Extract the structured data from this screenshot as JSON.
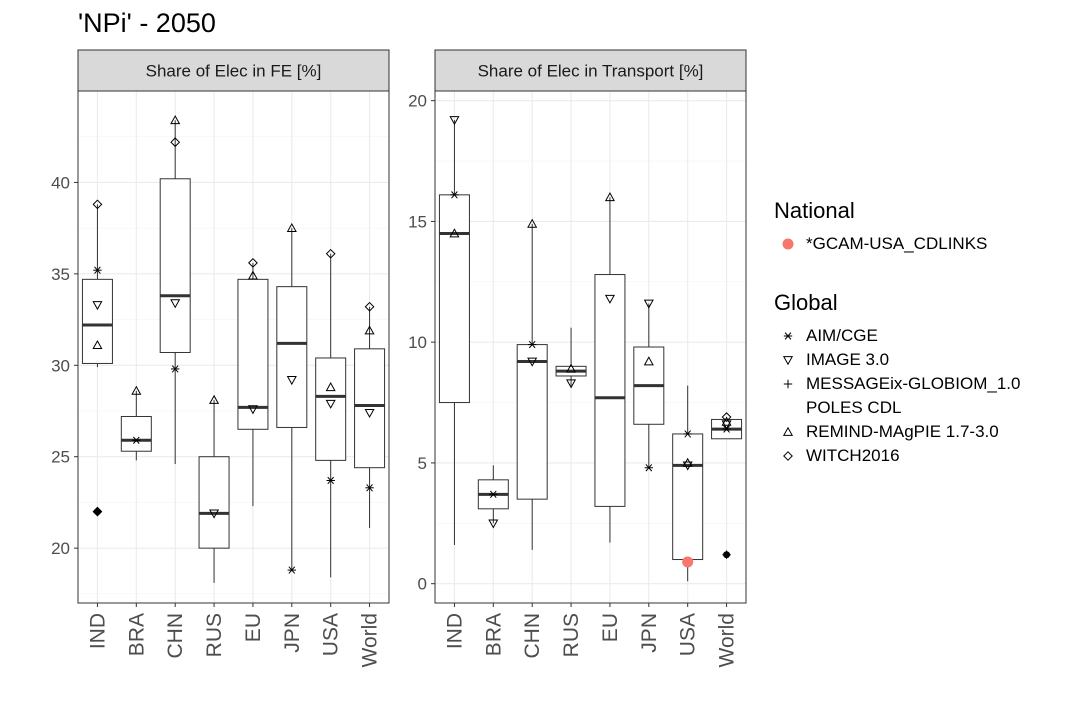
{
  "title": "'NPi' - 2050",
  "legend": {
    "national_title": "National",
    "national_items": [
      {
        "label": "*GCAM-USA_CDLINKS",
        "symbol": "dot-red",
        "color": "#F8766D"
      }
    ],
    "global_title": "Global",
    "global_items": [
      {
        "label": "AIM/CGE",
        "symbol": "asterisk"
      },
      {
        "label": "IMAGE 3.0",
        "symbol": "triangle-down"
      },
      {
        "label": "MESSAGEix-GLOBIOM_1.0",
        "symbol": "plus"
      },
      {
        "label": "POLES CDL",
        "symbol": "none"
      },
      {
        "label": "REMIND-MAgPIE 1.7-3.0",
        "symbol": "triangle-up"
      },
      {
        "label": "WITCH2016",
        "symbol": "diamond"
      }
    ]
  },
  "chart_data": [
    {
      "type": "box",
      "facet_title": "Share of Elec in FE [%]",
      "categories": [
        "IND",
        "BRA",
        "CHN",
        "RUS",
        "EU",
        "JPN",
        "USA",
        "World"
      ],
      "ylim": [
        17,
        45
      ],
      "yticks": [
        20,
        25,
        30,
        35,
        40
      ],
      "grid": true,
      "boxes": [
        {
          "cat": "IND",
          "q1": 30.1,
          "median": 32.2,
          "q3": 34.7,
          "whisker_low": 29.9,
          "whisker_high": 38.8,
          "outliers": [
            22.0
          ]
        },
        {
          "cat": "BRA",
          "q1": 25.3,
          "median": 25.9,
          "q3": 27.2,
          "whisker_low": 24.8,
          "whisker_high": 28.6,
          "outliers": []
        },
        {
          "cat": "CHN",
          "q1": 30.7,
          "median": 33.8,
          "q3": 40.2,
          "whisker_low": 24.6,
          "whisker_high": 43.4,
          "outliers": []
        },
        {
          "cat": "RUS",
          "q1": 20.0,
          "median": 21.9,
          "q3": 25.0,
          "whisker_low": 18.1,
          "whisker_high": 28.1,
          "outliers": []
        },
        {
          "cat": "EU",
          "q1": 26.5,
          "median": 27.7,
          "q3": 34.7,
          "whisker_low": 22.3,
          "whisker_high": 35.6,
          "outliers": []
        },
        {
          "cat": "JPN",
          "q1": 26.6,
          "median": 31.2,
          "q3": 34.3,
          "whisker_low": 18.8,
          "whisker_high": 37.5,
          "outliers": []
        },
        {
          "cat": "USA",
          "q1": 24.8,
          "median": 28.3,
          "q3": 30.4,
          "whisker_low": 18.4,
          "whisker_high": 36.1,
          "outliers": []
        },
        {
          "cat": "World",
          "q1": 24.4,
          "median": 27.8,
          "q3": 30.9,
          "whisker_low": 21.1,
          "whisker_high": 33.2,
          "outliers": []
        }
      ],
      "points": [
        {
          "cat": "IND",
          "model": "AIM/CGE",
          "y": 35.2
        },
        {
          "cat": "IND",
          "model": "IMAGE 3.0",
          "y": 33.3
        },
        {
          "cat": "IND",
          "model": "REMIND-MAgPIE 1.7-3.0",
          "y": 31.1
        },
        {
          "cat": "IND",
          "model": "WITCH2016",
          "y": 38.8
        },
        {
          "cat": "IND",
          "model": "MESSAGEix-GLOBIOM_1.0",
          "y": 22.0
        },
        {
          "cat": "IND",
          "model": "WITCH2016",
          "y": 22.0
        },
        {
          "cat": "BRA",
          "model": "AIM/CGE",
          "y": 25.9
        },
        {
          "cat": "BRA",
          "model": "REMIND-MAgPIE 1.7-3.0",
          "y": 28.6
        },
        {
          "cat": "CHN",
          "model": "AIM/CGE",
          "y": 29.8
        },
        {
          "cat": "CHN",
          "model": "IMAGE 3.0",
          "y": 33.4
        },
        {
          "cat": "CHN",
          "model": "WITCH2016",
          "y": 42.2
        },
        {
          "cat": "CHN",
          "model": "REMIND-MAgPIE 1.7-3.0",
          "y": 43.4
        },
        {
          "cat": "RUS",
          "model": "IMAGE 3.0",
          "y": 21.9
        },
        {
          "cat": "RUS",
          "model": "REMIND-MAgPIE 1.7-3.0",
          "y": 28.1
        },
        {
          "cat": "EU",
          "model": "IMAGE 3.0",
          "y": 27.6
        },
        {
          "cat": "EU",
          "model": "REMIND-MAgPIE 1.7-3.0",
          "y": 34.9
        },
        {
          "cat": "EU",
          "model": "WITCH2016",
          "y": 35.6
        },
        {
          "cat": "JPN",
          "model": "AIM/CGE",
          "y": 18.8
        },
        {
          "cat": "JPN",
          "model": "IMAGE 3.0",
          "y": 29.2
        },
        {
          "cat": "JPN",
          "model": "REMIND-MAgPIE 1.7-3.0",
          "y": 37.5
        },
        {
          "cat": "USA",
          "model": "AIM/CGE",
          "y": 23.7
        },
        {
          "cat": "USA",
          "model": "IMAGE 3.0",
          "y": 27.9
        },
        {
          "cat": "USA",
          "model": "REMIND-MAgPIE 1.7-3.0",
          "y": 28.8
        },
        {
          "cat": "USA",
          "model": "WITCH2016",
          "y": 36.1
        },
        {
          "cat": "World",
          "model": "AIM/CGE",
          "y": 23.3
        },
        {
          "cat": "World",
          "model": "IMAGE 3.0",
          "y": 27.4
        },
        {
          "cat": "World",
          "model": "REMIND-MAgPIE 1.7-3.0",
          "y": 31.9
        },
        {
          "cat": "World",
          "model": "WITCH2016",
          "y": 33.2
        }
      ]
    },
    {
      "type": "box",
      "facet_title": "Share of Elec in Transport [%]",
      "categories": [
        "IND",
        "BRA",
        "CHN",
        "RUS",
        "EU",
        "JPN",
        "USA",
        "World"
      ],
      "ylim": [
        -0.8,
        20.4
      ],
      "yticks": [
        0,
        5,
        10,
        15,
        20
      ],
      "grid": true,
      "boxes": [
        {
          "cat": "IND",
          "q1": 7.5,
          "median": 14.5,
          "q3": 16.1,
          "whisker_low": 1.6,
          "whisker_high": 19.2,
          "outliers": []
        },
        {
          "cat": "BRA",
          "q1": 3.1,
          "median": 3.7,
          "q3": 4.3,
          "whisker_low": 2.5,
          "whisker_high": 4.9,
          "outliers": []
        },
        {
          "cat": "CHN",
          "q1": 3.5,
          "median": 9.2,
          "q3": 9.9,
          "whisker_low": 1.4,
          "whisker_high": 14.9,
          "outliers": []
        },
        {
          "cat": "RUS",
          "q1": 8.6,
          "median": 8.8,
          "q3": 9.0,
          "whisker_low": 8.2,
          "whisker_high": 10.6,
          "outliers": []
        },
        {
          "cat": "EU",
          "q1": 3.2,
          "median": 7.7,
          "q3": 12.8,
          "whisker_low": 1.7,
          "whisker_high": 16.0,
          "outliers": []
        },
        {
          "cat": "JPN",
          "q1": 6.6,
          "median": 8.2,
          "q3": 9.8,
          "whisker_low": 4.8,
          "whisker_high": 11.6,
          "outliers": []
        },
        {
          "cat": "USA",
          "q1": 1.0,
          "median": 4.9,
          "q3": 6.2,
          "whisker_low": 0.1,
          "whisker_high": 8.2,
          "outliers": []
        },
        {
          "cat": "World",
          "q1": 6.0,
          "median": 6.4,
          "q3": 6.8,
          "whisker_low": 6.0,
          "whisker_high": 6.9,
          "outliers": [
            1.2
          ]
        }
      ],
      "points": [
        {
          "cat": "IND",
          "model": "AIM/CGE",
          "y": 16.1
        },
        {
          "cat": "IND",
          "model": "REMIND-MAgPIE 1.7-3.0",
          "y": 14.5
        },
        {
          "cat": "IND",
          "model": "IMAGE 3.0",
          "y": 19.2
        },
        {
          "cat": "BRA",
          "model": "AIM/CGE",
          "y": 3.7
        },
        {
          "cat": "BRA",
          "model": "IMAGE 3.0",
          "y": 2.5
        },
        {
          "cat": "CHN",
          "model": "AIM/CGE",
          "y": 9.9
        },
        {
          "cat": "CHN",
          "model": "IMAGE 3.0",
          "y": 9.2
        },
        {
          "cat": "CHN",
          "model": "REMIND-MAgPIE 1.7-3.0",
          "y": 14.9
        },
        {
          "cat": "RUS",
          "model": "IMAGE 3.0",
          "y": 8.3
        },
        {
          "cat": "RUS",
          "model": "REMIND-MAgPIE 1.7-3.0",
          "y": 8.9
        },
        {
          "cat": "EU",
          "model": "IMAGE 3.0",
          "y": 11.8
        },
        {
          "cat": "EU",
          "model": "REMIND-MAgPIE 1.7-3.0",
          "y": 16.0
        },
        {
          "cat": "JPN",
          "model": "AIM/CGE",
          "y": 4.8
        },
        {
          "cat": "JPN",
          "model": "REMIND-MAgPIE 1.7-3.0",
          "y": 9.2
        },
        {
          "cat": "JPN",
          "model": "IMAGE 3.0",
          "y": 11.6
        },
        {
          "cat": "USA",
          "model": "AIM/CGE",
          "y": 6.2
        },
        {
          "cat": "USA",
          "model": "IMAGE 3.0",
          "y": 4.9
        },
        {
          "cat": "USA",
          "model": "REMIND-MAgPIE 1.7-3.0",
          "y": 5.0
        },
        {
          "cat": "USA",
          "model": "*GCAM-USA_CDLINKS",
          "y": 0.9
        },
        {
          "cat": "World",
          "model": "AIM/CGE",
          "y": 6.4
        },
        {
          "cat": "World",
          "model": "IMAGE 3.0",
          "y": 6.6
        },
        {
          "cat": "World",
          "model": "REMIND-MAgPIE 1.7-3.0",
          "y": 6.7
        },
        {
          "cat": "World",
          "model": "WITCH2016",
          "y": 6.9
        },
        {
          "cat": "World",
          "model": "MESSAGEix-GLOBIOM_1.0",
          "y": 1.2
        }
      ]
    }
  ]
}
